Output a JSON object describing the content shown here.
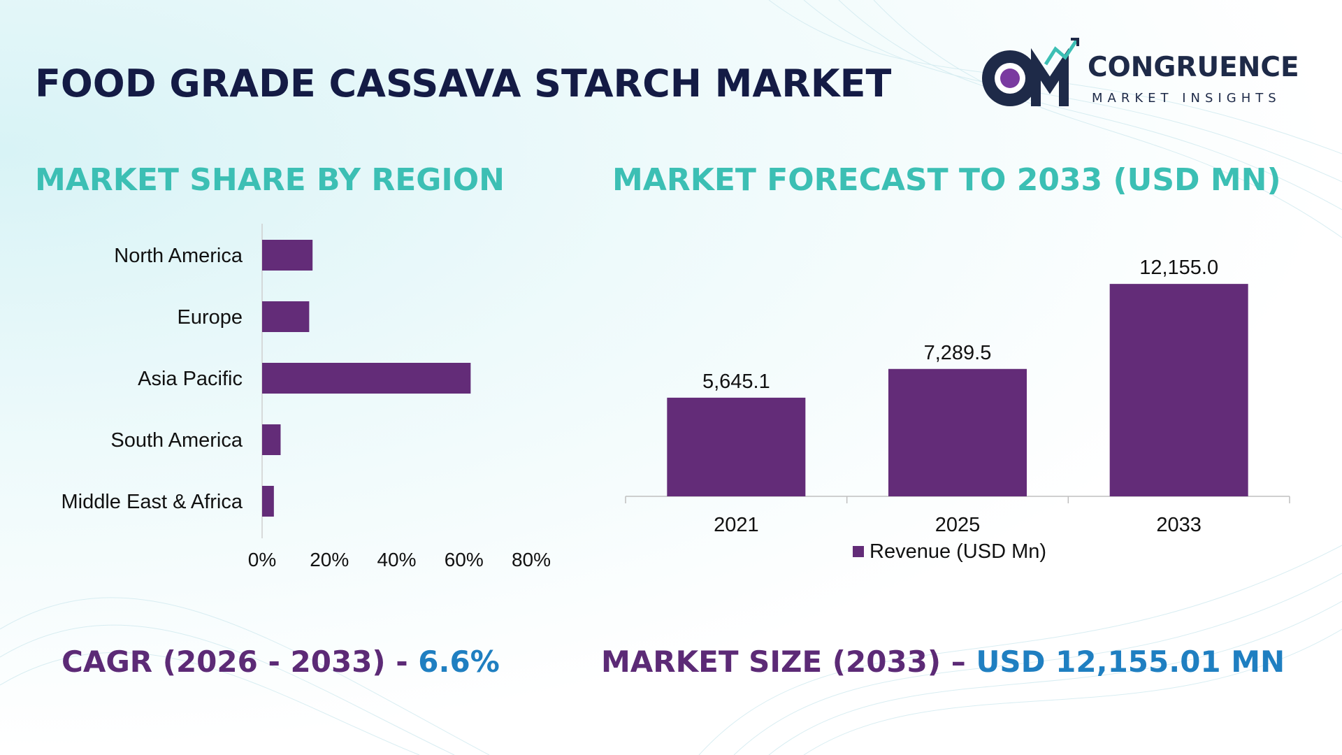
{
  "header": {
    "title": "FOOD GRADE CASSAVA STARCH MARKET",
    "logo_name": "CONGRUENCE",
    "logo_tagline": "MARKET INSIGHTS"
  },
  "region_section": {
    "title": "MARKET SHARE BY REGION"
  },
  "forecast_section": {
    "title": "MARKET FORECAST TO 2033 (USD MN)"
  },
  "footer": {
    "cagr_label": "CAGR (2026 - 2033) - ",
    "cagr_value": "6.6%",
    "size_label": "MARKET SIZE (2033) – ",
    "size_value": "USD 12,155.01 MN"
  },
  "colors": {
    "bar": "#632c78",
    "title": "#141b45",
    "accent": "#3cbfb4",
    "footer_label": "#5c2a76",
    "footer_value": "#1f7fc1"
  },
  "chart_data": [
    {
      "type": "bar",
      "orientation": "horizontal",
      "title": "MARKET SHARE BY REGION",
      "categories": [
        "North America",
        "Europe",
        "Asia Pacific",
        "South America",
        "Middle East & Africa"
      ],
      "values": [
        15,
        14,
        62,
        5.5,
        3.5
      ],
      "xlim": [
        0,
        80
      ],
      "xticks": [
        "0%",
        "20%",
        "40%",
        "60%",
        "80%"
      ],
      "grid": false
    },
    {
      "type": "bar",
      "orientation": "vertical",
      "title": "MARKET FORECAST TO 2033 (USD MN)",
      "categories": [
        "2021",
        "2025",
        "2033"
      ],
      "values": [
        5645.1,
        7289.5,
        12155.0
      ],
      "data_labels": [
        "5,645.1",
        "7,289.5",
        "12,155.0"
      ],
      "legend": "Revenue (USD Mn)",
      "legend_position": "bottom",
      "ylim": [
        0,
        14000
      ],
      "grid": false
    }
  ]
}
